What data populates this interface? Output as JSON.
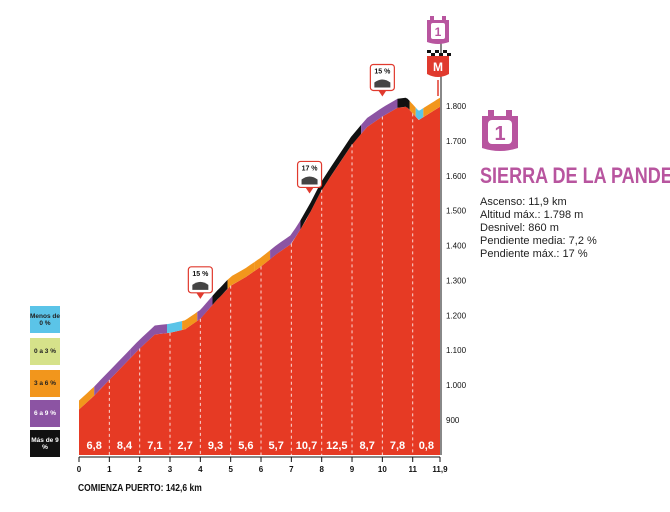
{
  "chart_data": {
    "type": "area",
    "x": [
      0,
      0.5,
      1,
      1.5,
      2,
      2.5,
      3,
      3.5,
      4,
      4.5,
      5,
      5.5,
      6,
      6.5,
      7,
      7.5,
      8,
      8.5,
      9,
      9.5,
      10,
      10.5,
      10.8,
      11.2,
      11.9
    ],
    "y": [
      930,
      970,
      1015,
      1060,
      1105,
      1145,
      1150,
      1160,
      1190,
      1240,
      1285,
      1310,
      1340,
      1375,
      1405,
      1475,
      1560,
      1625,
      1690,
      1740,
      1770,
      1795,
      1798,
      1760,
      1798
    ],
    "segments": [
      {
        "label": "6,8",
        "from": 0,
        "to": 1
      },
      {
        "label": "8,4",
        "from": 1,
        "to": 2
      },
      {
        "label": "7,1",
        "from": 2,
        "to": 3
      },
      {
        "label": "2,7",
        "from": 3,
        "to": 4
      },
      {
        "label": "9,3",
        "from": 4,
        "to": 5
      },
      {
        "label": "5,6",
        "from": 5,
        "to": 6
      },
      {
        "label": "5,7",
        "from": 6,
        "to": 7
      },
      {
        "label": "10,7",
        "from": 7,
        "to": 8
      },
      {
        "label": "12,5",
        "from": 8,
        "to": 9
      },
      {
        "label": "8,7",
        "from": 9,
        "to": 10
      },
      {
        "label": "7,8",
        "from": 10,
        "to": 11
      },
      {
        "label": "0,8",
        "from": 11,
        "to": 11.9
      }
    ],
    "x_ticks": [
      "0",
      "1",
      "2",
      "3",
      "4",
      "5",
      "6",
      "7",
      "8",
      "9",
      "10",
      "11",
      "11,9"
    ],
    "y_ticks": [
      "900",
      "1.000",
      "1.100",
      "1.200",
      "1.300",
      "1.400",
      "1.500",
      "1.600",
      "1.700",
      "1.800"
    ],
    "ylim": [
      800,
      1800
    ],
    "xlim": [
      0,
      11.9
    ],
    "gradient_bands": [
      {
        "from": 0,
        "to": 0.5,
        "class": "3 a 6 %"
      },
      {
        "from": 0.5,
        "to": 1.7,
        "class": "6 a 9 %"
      },
      {
        "from": 1.7,
        "to": 2.9,
        "class": "6 a 9 %"
      },
      {
        "from": 2.9,
        "to": 3.4,
        "class": "Menos de 0 %"
      },
      {
        "from": 3.4,
        "to": 3.9,
        "class": "3 a 6 %"
      },
      {
        "from": 3.9,
        "to": 4.4,
        "class": "6 a 9 %"
      },
      {
        "from": 4.4,
        "to": 4.9,
        "class": "Más de 9 %"
      },
      {
        "from": 4.9,
        "to": 5.8,
        "class": "3 a 6 %"
      },
      {
        "from": 5.8,
        "to": 6.3,
        "class": "3 a 6 %"
      },
      {
        "from": 6.3,
        "to": 7.3,
        "class": "6 a 9 %"
      },
      {
        "from": 7.3,
        "to": 9.3,
        "class": "Más de 9 %"
      },
      {
        "from": 9.3,
        "to": 10.5,
        "class": "6 a 9 %"
      },
      {
        "from": 10.5,
        "to": 10.9,
        "class": "Más de 9 %"
      },
      {
        "from": 10.9,
        "to": 11.1,
        "class": "3 a 6 %"
      },
      {
        "from": 11.1,
        "to": 11.35,
        "class": "Menos de 0 %"
      },
      {
        "from": 11.35,
        "to": 11.9,
        "class": "3 a 6 %"
      }
    ],
    "annotations": [
      {
        "label": "15 %",
        "x": 4.0
      },
      {
        "label": "17 %",
        "x": 7.6
      },
      {
        "label": "15 %",
        "x": 10.0
      }
    ]
  },
  "legend": [
    {
      "label": "Menos de 0 %",
      "color": "#5bc4e8"
    },
    {
      "label": "0 a 3 %",
      "color": "#d6e28a"
    },
    {
      "label": "3 a 6 %",
      "color": "#f2961c"
    },
    {
      "label": "6 a 9 %",
      "color": "#8c54a3"
    },
    {
      "label": "Más de 9 %",
      "color": "#111111"
    }
  ],
  "colors": {
    "area": "#e63a24",
    "accent": "#b8559f",
    "badge_red": "#e03a2e"
  },
  "badge_number": "1",
  "summit_badge": "M",
  "climb": {
    "name": "SIERRA DE LA PANDERA",
    "stats": [
      "Ascenso: 11,9 km",
      "Altitud máx.: 1.798 m",
      "Desnivel: 860 m",
      "Pendiente media: 7,2 %",
      "Pendiente máx.: 17 %"
    ]
  },
  "footer": "COMIENZA PUERTO: 142,6 km"
}
